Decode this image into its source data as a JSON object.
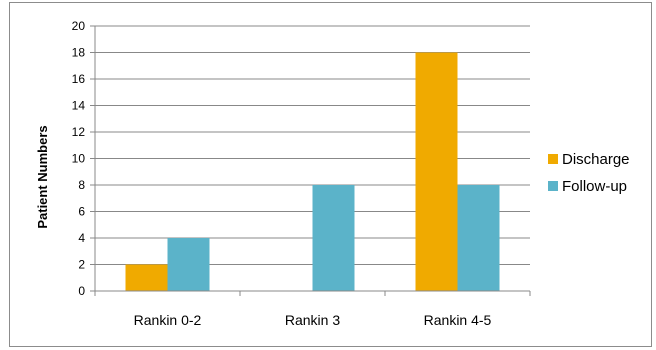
{
  "chart_data": {
    "type": "bar",
    "categories": [
      "Rankin 0-2",
      "Rankin 3",
      "Rankin 4-5"
    ],
    "series": [
      {
        "name": "Discharge",
        "values": [
          2,
          0,
          18
        ],
        "color": "#F0AA00"
      },
      {
        "name": "Follow-up",
        "values": [
          4,
          8,
          8
        ],
        "color": "#5BB3C9"
      }
    ],
    "title": "",
    "xlabel": "",
    "ylabel": "Patient Numbers",
    "ylim": [
      0,
      20
    ],
    "yticks": [
      0,
      2,
      4,
      6,
      8,
      10,
      12,
      14,
      16,
      18,
      20
    ],
    "grid": true,
    "legend_position": "right"
  }
}
